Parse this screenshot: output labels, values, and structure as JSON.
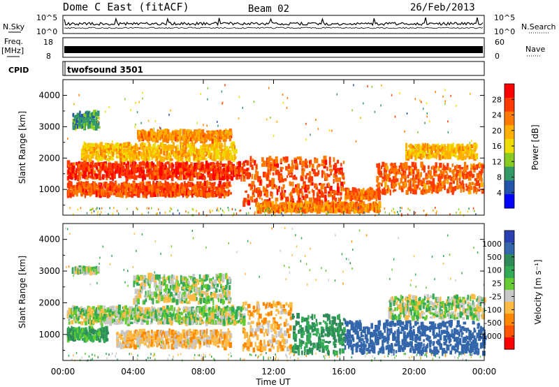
{
  "header": {
    "station": "Dome C East (fitACF)",
    "beam": "Beam 02",
    "date": "26/Feb/2013"
  },
  "top_panels": {
    "nsky_label": "N.Sky",
    "nsky_ticks": [
      "10^5",
      "10^0"
    ],
    "nsearch_label": "N.Search",
    "freq_label": "Freq.",
    "freq_unit": "[MHz]",
    "freq_ticks": [
      "18",
      "8"
    ],
    "nave_label": "Nave",
    "nave_ticks": [
      "60",
      "0"
    ],
    "cpid_label": "CPID",
    "cpid_value": "twofsound 3501"
  },
  "power_panel": {
    "ylabel": "Slant Range [km]",
    "colorbar_label": "Power [dB]",
    "colorbar_ticks": [
      "28",
      "24",
      "20",
      "16",
      "12",
      "8",
      "4"
    ],
    "colorbar_colors": [
      "#ff0000",
      "#ff3a00",
      "#ff7a00",
      "#ffb000",
      "#eedd00",
      "#88cc22",
      "#339966",
      "#2255aa",
      "#0000ff"
    ]
  },
  "velocity_panel": {
    "ylabel": "Slant Range [km]",
    "colorbar_label": "Velocity [m s⁻¹]",
    "colorbar_ticks": [
      "1000",
      "500",
      "100",
      "25",
      "-25",
      "-100",
      "-500",
      "-1000"
    ],
    "colorbar_colors": [
      "#2a3fb0",
      "#3366aa",
      "#2e8b57",
      "#33aa55",
      "#66cc33",
      "#c8c8c8",
      "#ffbb44",
      "#ff8800",
      "#ff5500",
      "#ff0000"
    ]
  },
  "x_axis": {
    "label": "Time UT",
    "ticks": [
      "00:00",
      "04:00",
      "08:00",
      "12:00",
      "16:00",
      "20:00",
      "00:00"
    ]
  },
  "chart_data": {
    "type": "heatmap",
    "x_range_hours": [
      0,
      24
    ],
    "y_range_km": [
      180,
      4500
    ],
    "y_ticks": [
      1000,
      2000,
      3000,
      4000
    ],
    "power_range_db": [
      0,
      30
    ],
    "velocity_range_ms": [
      -1000,
      1000
    ],
    "power_bands": [
      {
        "t0": 0.2,
        "t1": 10.3,
        "r0": 1350,
        "r1": 1850,
        "power": 27
      },
      {
        "t0": 0.2,
        "t1": 9.5,
        "r0": 800,
        "r1": 1200,
        "power": 25
      },
      {
        "t0": 1.0,
        "t1": 9.8,
        "r0": 1950,
        "r1": 2450,
        "power": 18
      },
      {
        "t0": 4.2,
        "t1": 9.5,
        "r0": 2550,
        "r1": 2850,
        "power": 21
      },
      {
        "t0": 10.2,
        "t1": 16.0,
        "r0": 500,
        "r1": 2000,
        "power": 25
      },
      {
        "t0": 11.0,
        "t1": 18.0,
        "r0": 300,
        "r1": 550,
        "power": 22
      },
      {
        "t0": 16.0,
        "t1": 18.0,
        "r0": 700,
        "r1": 1000,
        "power": 24
      },
      {
        "t0": 17.8,
        "t1": 23.9,
        "r0": 900,
        "r1": 1800,
        "power": 24
      },
      {
        "t0": 19.5,
        "t1": 23.5,
        "r0": 2000,
        "r1": 2400,
        "power": 18
      },
      {
        "t0": 0.5,
        "t1": 2.0,
        "r0": 2950,
        "r1": 3450,
        "power": 8
      }
    ],
    "velocity_bands": [
      {
        "t0": 0.2,
        "t1": 10.3,
        "r0": 1350,
        "r1": 1850,
        "velocity": 0
      },
      {
        "t0": 0.2,
        "t1": 2.5,
        "r0": 800,
        "r1": 1200,
        "velocity": 150
      },
      {
        "t0": 3.0,
        "t1": 9.5,
        "r0": 600,
        "r1": 1100,
        "velocity": -120
      },
      {
        "t0": 4.0,
        "t1": 9.5,
        "r0": 2000,
        "r1": 2850,
        "velocity": 0
      },
      {
        "t0": 10.2,
        "t1": 13.0,
        "r0": 500,
        "r1": 2000,
        "velocity": -150
      },
      {
        "t0": 13.0,
        "t1": 16.0,
        "r0": 400,
        "r1": 1600,
        "velocity": 200
      },
      {
        "t0": 16.0,
        "t1": 24.0,
        "r0": 400,
        "r1": 1400,
        "velocity": 500
      },
      {
        "t0": 18.5,
        "t1": 24.0,
        "r0": 1500,
        "r1": 2200,
        "velocity": 0
      },
      {
        "t0": 0.5,
        "t1": 2.0,
        "r0": 2950,
        "r1": 3100,
        "velocity": 0
      }
    ]
  }
}
